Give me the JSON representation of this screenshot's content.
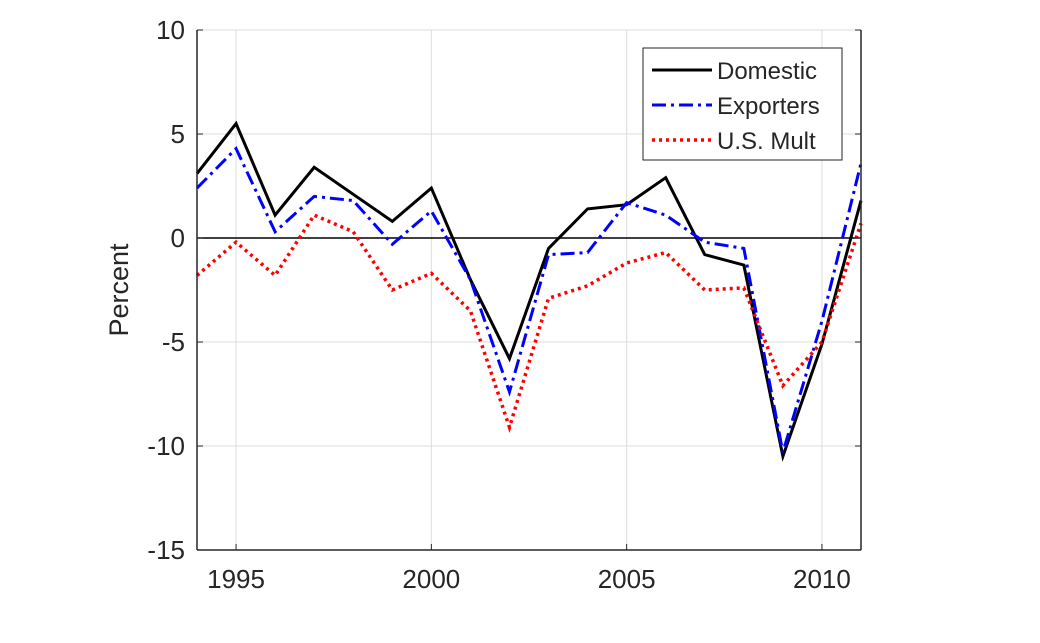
{
  "chart_data": {
    "type": "line",
    "title": "",
    "xlabel": "",
    "ylabel": "Percent",
    "xlim": [
      1994,
      2011
    ],
    "ylim": [
      -15,
      10
    ],
    "xticks": [
      1995,
      2000,
      2005,
      2010
    ],
    "yticks": [
      -15,
      -10,
      -5,
      0,
      5,
      10
    ],
    "grid": true,
    "zero_line": true,
    "legend_placement": "top-right",
    "x": [
      1994,
      1995,
      1996,
      1997,
      1998,
      1999,
      2000,
      2001,
      2002,
      2003,
      2004,
      2005,
      2006,
      2007,
      2008,
      2009,
      2010,
      2011
    ],
    "series": [
      {
        "name": "Domestic",
        "color": "#000000",
        "style": "solid",
        "values": [
          3.1,
          5.5,
          1.1,
          3.4,
          2.1,
          0.8,
          2.4,
          -2.0,
          -5.8,
          -0.5,
          1.4,
          1.6,
          2.9,
          -0.8,
          -1.3,
          -10.5,
          -5.1,
          1.8
        ]
      },
      {
        "name": "Exporters",
        "color": "#0000ff",
        "style": "dashdot",
        "values": [
          2.4,
          4.3,
          0.3,
          2.0,
          1.8,
          -0.3,
          1.3,
          -2.0,
          -7.4,
          -0.8,
          -0.7,
          1.7,
          1.1,
          -0.2,
          -0.5,
          -10.3,
          -4.0,
          3.6
        ]
      },
      {
        "name": "U.S. Mult",
        "color": "#ff0000",
        "style": "dotted",
        "values": [
          -1.8,
          -0.2,
          -1.8,
          1.1,
          0.3,
          -2.5,
          -1.7,
          -3.5,
          -9.1,
          -2.9,
          -2.3,
          -1.2,
          -0.7,
          -2.5,
          -2.4,
          -7.1,
          -5.0,
          0.7
        ]
      }
    ]
  }
}
